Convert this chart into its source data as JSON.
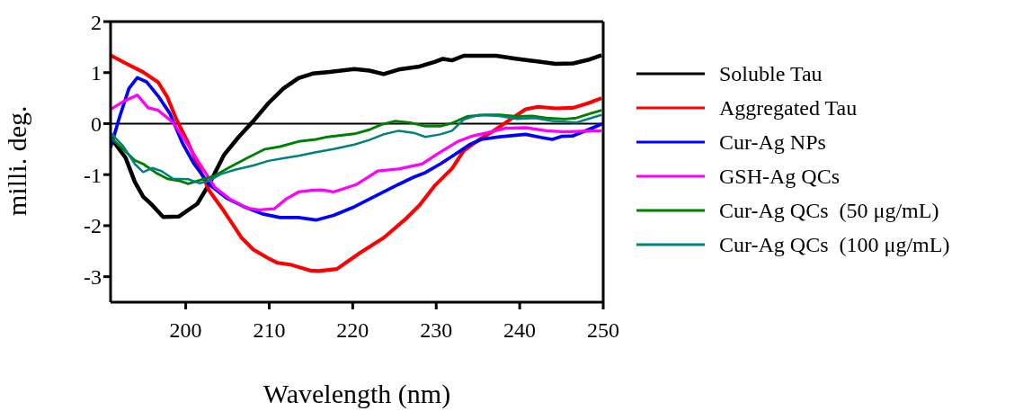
{
  "chart_data": {
    "type": "line",
    "xlabel": "Wavelength (nm)",
    "ylabel": "milli. deg.",
    "xlim": [
      191,
      250
    ],
    "xticks": [
      200,
      210,
      220,
      230,
      240,
      250
    ],
    "ylim": [
      -3.5,
      2
    ],
    "yticks": [
      -3,
      -2,
      -1,
      0,
      1,
      2
    ],
    "legend": "right",
    "marker": "none",
    "line_style": "solid",
    "ref_lines": [
      {
        "axis": "y",
        "value": 0,
        "color": "#000000"
      }
    ],
    "series": [
      {
        "name": "Soluble Tau",
        "color": "#000000",
        "x": [
          191,
          192.8,
          193.9,
          194.9,
          196,
          197.3,
          199.2,
          201.4,
          202.8,
          204.6,
          206.3,
          208.1,
          209.9,
          211.7,
          213.5,
          215.2,
          217,
          220.2,
          222,
          223.7,
          225.5,
          228,
          229.8,
          230.8,
          231.9,
          233.3,
          235.1,
          237.2,
          239.7,
          242.5,
          244.3,
          246.4,
          248.2,
          249.8
        ],
        "values": [
          -0.27,
          -0.67,
          -1.14,
          -1.43,
          -1.6,
          -1.83,
          -1.82,
          -1.57,
          -1.19,
          -0.61,
          -0.27,
          0.05,
          0.4,
          0.69,
          0.89,
          0.98,
          1.01,
          1.07,
          1.04,
          0.97,
          1.06,
          1.12,
          1.21,
          1.27,
          1.24,
          1.33,
          1.33,
          1.33,
          1.27,
          1.21,
          1.17,
          1.18,
          1.25,
          1.34
        ]
      },
      {
        "name": "Aggregated Tau",
        "color": "#ff0000",
        "x": [
          191,
          193.2,
          194.9,
          196.7,
          197.8,
          198.9,
          200.3,
          201.7,
          202.8,
          204.6,
          206.7,
          208.1,
          209.9,
          211,
          212.7,
          214.9,
          215.9,
          218.1,
          220.9,
          223.7,
          226.2,
          228,
          229.8,
          231.9,
          233.3,
          235.1,
          236.8,
          238.6,
          240.7,
          242.2,
          244.3,
          246.4,
          248.2,
          249.8
        ],
        "values": [
          1.34,
          1.15,
          1.01,
          0.81,
          0.52,
          0.08,
          -0.38,
          -0.9,
          -1.31,
          -1.72,
          -2.24,
          -2.47,
          -2.64,
          -2.73,
          -2.77,
          -2.88,
          -2.89,
          -2.85,
          -2.53,
          -2.24,
          -1.89,
          -1.6,
          -1.22,
          -0.88,
          -0.53,
          -0.32,
          -0.15,
          0.05,
          0.28,
          0.33,
          0.3,
          0.31,
          0.4,
          0.5
        ]
      },
      {
        "name": "Cur-Ag NPs",
        "color": "#0000ff",
        "x": [
          191,
          192.1,
          193.2,
          194.2,
          195.3,
          196.7,
          198.1,
          199.6,
          201,
          202.8,
          204.9,
          207,
          209.2,
          211.3,
          213.5,
          215.6,
          217.7,
          220.2,
          222,
          223.7,
          225.5,
          227.3,
          228.7,
          230.5,
          232.2,
          234,
          235.4,
          237.6,
          240.7,
          242.5,
          243.9,
          245,
          246.4,
          248.2,
          249.8
        ],
        "values": [
          -0.47,
          0.14,
          0.69,
          0.9,
          0.82,
          0.54,
          0.2,
          -0.38,
          -0.79,
          -1.19,
          -1.46,
          -1.63,
          -1.77,
          -1.84,
          -1.84,
          -1.89,
          -1.8,
          -1.63,
          -1.48,
          -1.34,
          -1.19,
          -1.05,
          -0.96,
          -0.79,
          -0.61,
          -0.41,
          -0.31,
          -0.26,
          -0.21,
          -0.27,
          -0.31,
          -0.25,
          -0.24,
          -0.12,
          -0.01
        ]
      },
      {
        "name": "GSH-Ag QCs",
        "color": "#ff00ff",
        "x": [
          191,
          192.5,
          194.2,
          195.5,
          196.7,
          198.5,
          199.9,
          201.7,
          203.5,
          205.3,
          207.4,
          208.8,
          210.6,
          212,
          213.5,
          214.9,
          216.3,
          217.7,
          220.5,
          223,
          225.5,
          228.3,
          230.5,
          232.6,
          234.4,
          236.1,
          238.3,
          240.7,
          243.2,
          245.4,
          247.5,
          249.8
        ],
        "values": [
          0.28,
          0.43,
          0.56,
          0.31,
          0.26,
          0.02,
          -0.32,
          -0.79,
          -1.25,
          -1.48,
          -1.66,
          -1.69,
          -1.67,
          -1.48,
          -1.34,
          -1.31,
          -1.3,
          -1.34,
          -1.19,
          -0.93,
          -0.89,
          -0.79,
          -0.56,
          -0.35,
          -0.24,
          -0.18,
          -0.09,
          -0.08,
          -0.14,
          -0.16,
          -0.15,
          -0.14
        ]
      },
      {
        "name": "Cur-Ag QCs  (50 μg/mL)",
        "color": "#008000",
        "x": [
          191,
          192.5,
          193.9,
          194.9,
          196.4,
          197.8,
          199.2,
          200.3,
          201.7,
          203.5,
          205.3,
          207.4,
          209.5,
          211.3,
          213.5,
          215.6,
          217,
          220.2,
          222,
          223.4,
          225.1,
          226.9,
          228.7,
          230.5,
          231.9,
          233.7,
          235.8,
          237.6,
          239.7,
          241.5,
          243.2,
          245.4,
          246.8,
          248.5,
          249.8
        ],
        "values": [
          -0.27,
          -0.5,
          -0.72,
          -0.79,
          -0.96,
          -1.08,
          -1.12,
          -1.18,
          -1.11,
          -1.02,
          -0.85,
          -0.67,
          -0.5,
          -0.45,
          -0.35,
          -0.31,
          -0.26,
          -0.2,
          -0.12,
          -0.02,
          0.05,
          0.02,
          -0.05,
          -0.05,
          0.01,
          0.14,
          0.17,
          0.17,
          0.14,
          0.15,
          0.11,
          0.09,
          0.11,
          0.2,
          0.26
        ]
      },
      {
        "name": "Cur-Ag QCs  (100 μg/mL)",
        "color": "#008080",
        "x": [
          191,
          192.5,
          193.9,
          194.9,
          196,
          197.1,
          198.5,
          200.3,
          201.7,
          202.8,
          204.2,
          206,
          208.1,
          209.9,
          212,
          213.5,
          215.6,
          217.7,
          220.2,
          222,
          223.7,
          225.5,
          227.3,
          228.7,
          230.5,
          231.9,
          233.3,
          235.1,
          237.6,
          239.7,
          241.8,
          243.9,
          246.8,
          249.8
        ],
        "values": [
          -0.18,
          -0.44,
          -0.79,
          -0.95,
          -0.87,
          -0.93,
          -1.08,
          -1.09,
          -1.17,
          -1.12,
          -0.99,
          -0.9,
          -0.82,
          -0.73,
          -0.67,
          -0.63,
          -0.56,
          -0.5,
          -0.41,
          -0.32,
          -0.21,
          -0.14,
          -0.18,
          -0.26,
          -0.21,
          -0.14,
          0.08,
          0.17,
          0.15,
          0.09,
          0.11,
          0.05,
          0.02,
          0.17
        ]
      }
    ]
  }
}
